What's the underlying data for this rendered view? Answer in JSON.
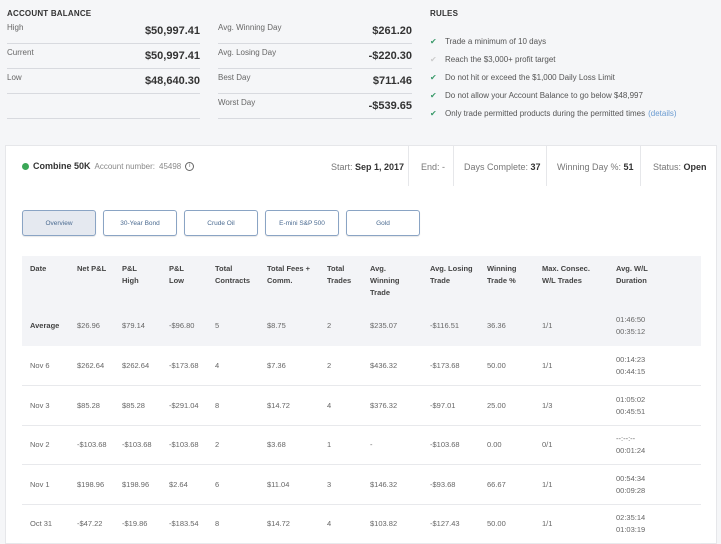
{
  "balance": {
    "title": "ACCOUNT BALANCE",
    "left": [
      {
        "label": "High",
        "value": "$50,997.41"
      },
      {
        "label": "Current",
        "value": "$50,997.41"
      },
      {
        "label": "Low",
        "value": "$48,640.30"
      },
      {
        "label": "",
        "value": ""
      }
    ],
    "right": [
      {
        "label": "Avg. Winning Day",
        "value": "$261.20"
      },
      {
        "label": "Avg. Losing Day",
        "value": "-$220.30"
      },
      {
        "label": "Best Day",
        "value": "$711.46"
      },
      {
        "label": "Worst Day",
        "value": "-$539.65"
      }
    ]
  },
  "rules": {
    "title": "RULES",
    "items": [
      {
        "text": "Trade a minimum of 10 days",
        "met": true
      },
      {
        "text": "Reach the $3,000+ profit target",
        "met": false
      },
      {
        "text": "Do not hit or exceed the $1,000 Daily Loss Limit",
        "met": true
      },
      {
        "text": "Do not allow your Account Balance to go below $48,997",
        "met": true
      },
      {
        "text": "Only trade permitted products during the permitted times",
        "met": true,
        "link": "(details)"
      }
    ]
  },
  "account": {
    "name": "Combine 50K",
    "number_label": "Account number:",
    "number": "45498",
    "start_label": "Start:",
    "start": "Sep 1, 2017",
    "end_label": "End:",
    "end": "-",
    "days_label": "Days Complete:",
    "days": "37",
    "winpct_label": "Winning Day %:",
    "winpct": "51",
    "status_label": "Status:",
    "status": "Open",
    "status_color": "#3aa757"
  },
  "tabs": [
    "Overview",
    "30-Year Bond",
    "Crude Oil",
    "E-mini S&P 500",
    "Gold"
  ],
  "table": {
    "headers": [
      [
        "Date"
      ],
      [
        "Net P&L"
      ],
      [
        "P&L",
        "High"
      ],
      [
        "P&L",
        "Low"
      ],
      [
        "Total",
        "Contracts"
      ],
      [
        "Total Fees +",
        "Comm."
      ],
      [
        "Total",
        "Trades"
      ],
      [
        "Avg.",
        "Winning",
        "Trade"
      ],
      [
        "Avg. Losing",
        "Trade"
      ],
      [
        "Winning",
        "Trade %"
      ],
      [
        "Max. Consec.",
        "W/L Trades"
      ],
      [
        "Avg. W/L",
        "Duration"
      ]
    ],
    "rows": [
      [
        "Average",
        "$26.96",
        "$79.14",
        "-$96.80",
        "5",
        "$8.75",
        "2",
        "$235.07",
        "-$116.51",
        "36.36",
        "1/1",
        "01:46:50",
        "00:35:12"
      ],
      [
        "Nov 6",
        "$262.64",
        "$262.64",
        "-$173.68",
        "4",
        "$7.36",
        "2",
        "$436.32",
        "-$173.68",
        "50.00",
        "1/1",
        "00:14:23",
        "00:44:15"
      ],
      [
        "Nov 3",
        "$85.28",
        "$85.28",
        "-$291.04",
        "8",
        "$14.72",
        "4",
        "$376.32",
        "-$97.01",
        "25.00",
        "1/3",
        "01:05:02",
        "00:45:51"
      ],
      [
        "Nov 2",
        "-$103.68",
        "-$103.68",
        "-$103.68",
        "2",
        "$3.68",
        "1",
        "-",
        "-$103.68",
        "0.00",
        "0/1",
        "--:--:--",
        "00:01:24"
      ],
      [
        "Nov 1",
        "$198.96",
        "$198.96",
        "$2.64",
        "6",
        "$11.04",
        "3",
        "$146.32",
        "-$93.68",
        "66.67",
        "1/1",
        "00:54:34",
        "00:09:28"
      ],
      [
        "Oct 31",
        "-$47.22",
        "-$19.86",
        "-$183.54",
        "8",
        "$14.72",
        "4",
        "$103.82",
        "-$127.43",
        "50.00",
        "1/1",
        "02:35:14",
        "01:03:19"
      ]
    ]
  }
}
